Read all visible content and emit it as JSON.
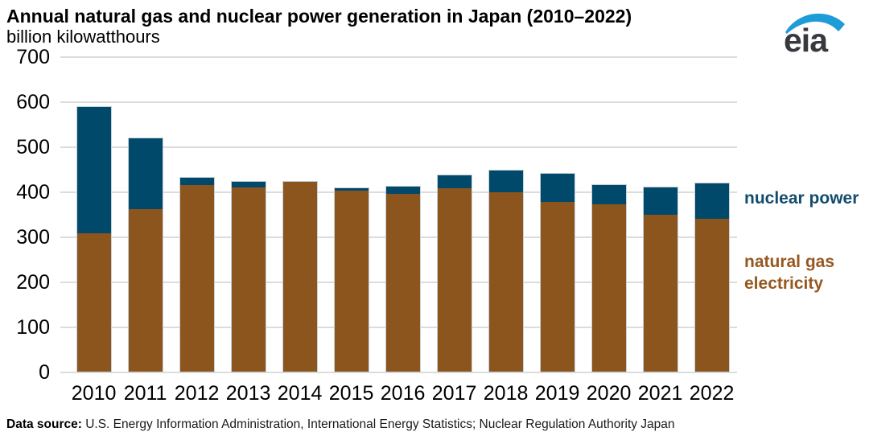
{
  "header": {
    "title": "Annual natural gas and nuclear power generation in Japan (2010–2022)",
    "subtitle": "billion kilowatthours",
    "logo_text": "eia"
  },
  "chart_data": {
    "type": "bar",
    "stacked": true,
    "title": "Annual natural gas and nuclear power generation in Japan (2010–2022)",
    "ylabel": "billion kilowatthours",
    "xlabel": "",
    "ylim": [
      0,
      700
    ],
    "ytick_step": 100,
    "grid": true,
    "legend_position": "right",
    "categories": [
      "2010",
      "2011",
      "2012",
      "2013",
      "2014",
      "2015",
      "2016",
      "2017",
      "2018",
      "2019",
      "2020",
      "2021",
      "2022"
    ],
    "series": [
      {
        "name": "natural gas electricity",
        "color": "#8c551e",
        "values": [
          307,
          360,
          415,
          409,
          422,
          402,
          395,
          408,
          398,
          376,
          371,
          348,
          339
        ]
      },
      {
        "name": "nuclear power",
        "color": "#01496b",
        "values": [
          280,
          157,
          16,
          13,
          0,
          5,
          16,
          29,
          49,
          62,
          42,
          61,
          79
        ]
      }
    ]
  },
  "legend": {
    "nuclear_label": "nuclear power",
    "gas_label_line1": "natural gas",
    "gas_label_line2": "electricity",
    "nuclear_color": "#124c6d",
    "gas_color": "#96581f"
  },
  "footer": {
    "source_label": "Data source:",
    "source_text": " U.S. Energy Information Administration, International Energy Statistics; Nuclear Regulation Authority Japan"
  },
  "colors": {
    "gridline": "#dcdcdc",
    "bar_border": "#c7d2d8",
    "logo_swoosh": "#1e9cd7",
    "logo_text": "#36393e"
  }
}
